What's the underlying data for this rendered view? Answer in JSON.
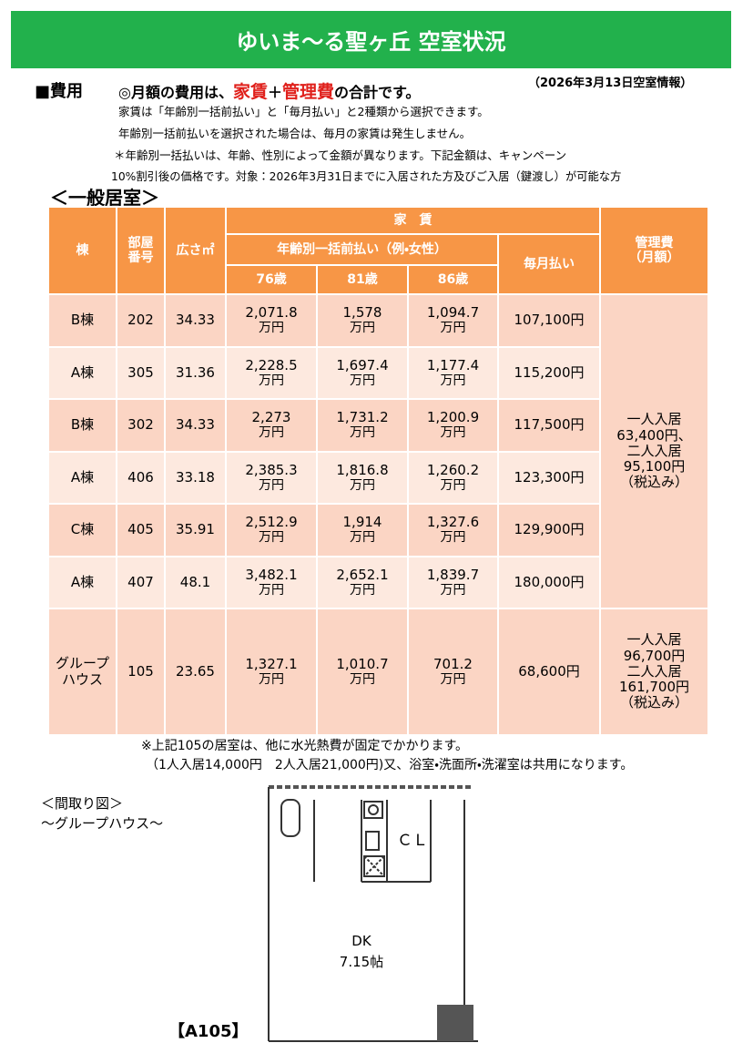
{
  "header": {
    "title": "ゆいま～る聖ヶ丘 空室状況"
  },
  "cost": {
    "label": "■費用",
    "intro": [
      "◎月額の費用は、",
      "家賃",
      "＋",
      "管理費",
      "の合計です。"
    ],
    "date": "（2026年3月13日空室情報）",
    "lines": [
      "家賃は「年齢別一括前払い」と「毎月払い」と2種類から選択できます。",
      "年齢別一括前払いを選択された場合は、毎月の家賃は発生しません。",
      "＊年齢別一括払いは、年齢、性別によって金額が異なります。下記金額は、キャンペーン",
      "10%割引後の価格です。対象：2026年3月31日までに入居された方及びご入居（鍵渡し）が可能な方"
    ]
  },
  "section_title": "＜一般居室＞",
  "table": {
    "headers": {
      "building": "棟",
      "room": [
        "部屋",
        "番号"
      ],
      "area": "広さ㎡",
      "rent": "家　賃",
      "lump_sum": "年齢別一括前払い（例・女性）",
      "ages": [
        "76歳",
        "81歳",
        "86歳"
      ],
      "monthly": "毎月払い",
      "fee": [
        "管理費",
        "（月額）"
      ]
    },
    "unit": "万円",
    "rows": [
      {
        "building": "B棟",
        "room": "202",
        "area": "34.33",
        "prices": [
          "2,071.8",
          "1,578",
          "1,094.7"
        ],
        "monthly": "107,100円"
      },
      {
        "building": "A棟",
        "room": "305",
        "area": "31.36",
        "prices": [
          "2,228.5",
          "1,697.4",
          "1,177.4"
        ],
        "monthly": "115,200円"
      },
      {
        "building": "B棟",
        "room": "302",
        "area": "34.33",
        "prices": [
          "2,273",
          "1,731.2",
          "1,200.9"
        ],
        "monthly": "117,500円"
      },
      {
        "building": "A棟",
        "room": "406",
        "area": "33.18",
        "prices": [
          "2,385.3",
          "1,816.8",
          "1,260.2"
        ],
        "monthly": "123,300円"
      },
      {
        "building": "C棟",
        "room": "405",
        "area": "35.91",
        "prices": [
          "2,512.9",
          "1,914",
          "1,327.6"
        ],
        "monthly": "129,900円"
      },
      {
        "building": "A棟",
        "room": "407",
        "area": "48.1",
        "prices": [
          "3,482.1",
          "2,652.1",
          "1,839.7"
        ],
        "monthly": "180,000円"
      }
    ],
    "fee_general": [
      "一人入居",
      "63,400円、",
      "二人入居",
      "95,100円",
      "（税込み）"
    ],
    "group_row": {
      "building": [
        "グループ",
        "ハウス"
      ],
      "room": "105",
      "area": "23.65",
      "prices": [
        "1,327.1",
        "1,010.7",
        "701.2"
      ],
      "monthly": "68,600円",
      "fee": [
        "一人入居",
        "96,700円",
        "二人入居",
        "161,700円",
        "（税込み）"
      ]
    }
  },
  "notes": [
    "※上記105の居室は、他に水光熱費が固定でかかります。",
    "（1人入居14,000円　2人入居21,000円)又、浴室・洗面所・洗濯室は共用になります。"
  ],
  "floor_plan": {
    "title": "＜間取り図＞",
    "subtitle": "～グループハウス～",
    "labels": {
      "cl": "ＣＬ",
      "dk": "DK",
      "size": "7.15帖"
    },
    "unit_name": "【A105】"
  }
}
